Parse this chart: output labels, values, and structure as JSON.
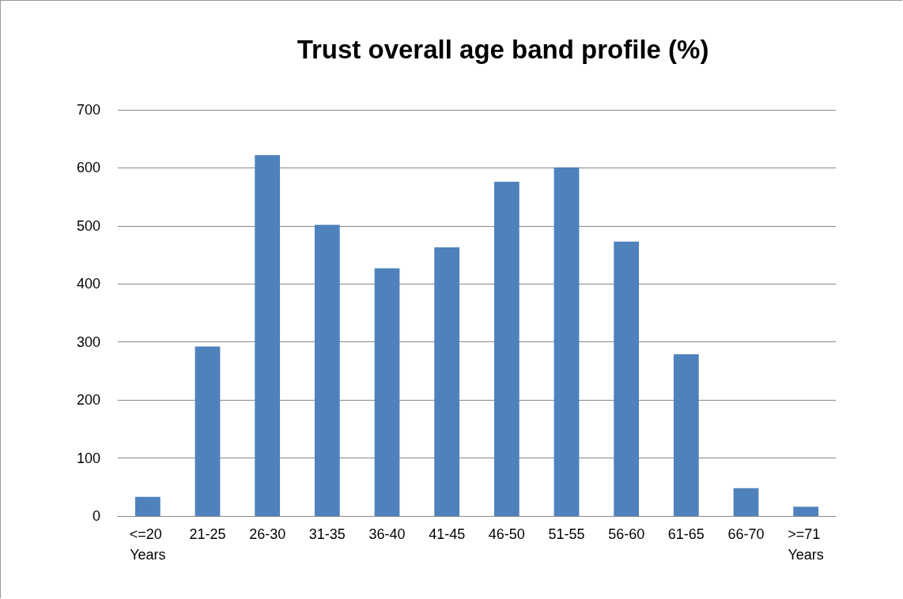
{
  "chart_data": {
    "type": "bar",
    "title": "Trust overall age band profile (%)",
    "categories": [
      "<=20 Years",
      "21-25",
      "26-30",
      "31-35",
      "36-40",
      "41-45",
      "46-50",
      "51-55",
      "56-60",
      "61-65",
      "66-70",
      ">=71 Years"
    ],
    "values": [
      33,
      292,
      622,
      502,
      427,
      463,
      576,
      601,
      473,
      279,
      48,
      16
    ],
    "color": "#4f81bd",
    "ylim": [
      0,
      700
    ],
    "yticks": [
      0,
      100,
      200,
      300,
      400,
      500,
      600,
      700
    ],
    "grid": "y"
  }
}
